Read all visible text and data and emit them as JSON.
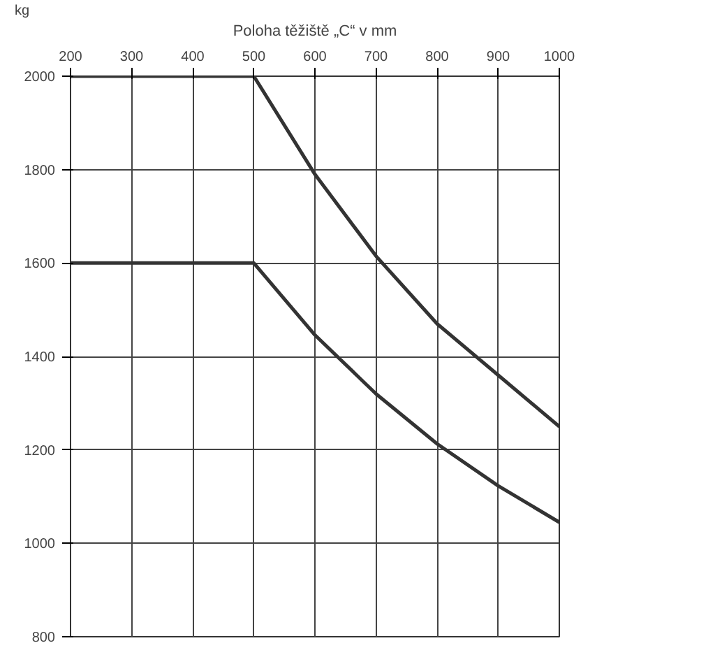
{
  "chart_data": {
    "type": "line",
    "xlabel": "Poloha těžiště „C“ v mm",
    "ylabel": "kg",
    "x": [
      200,
      300,
      400,
      500,
      600,
      700,
      800,
      900,
      1000
    ],
    "series": [
      {
        "color": "#333333",
        "values": [
          2000,
          2000,
          2000,
          2000,
          1790,
          1615,
          1470,
          1360,
          1250
        ]
      },
      {
        "color": "#333333",
        "values": [
          1600,
          1600,
          1600,
          1600,
          1446,
          1320,
          1213,
          1123,
          1045
        ]
      }
    ],
    "xlim": [
      200,
      1000
    ],
    "xticks": [
      200,
      300,
      400,
      500,
      600,
      700,
      800,
      900,
      1000
    ],
    "ylim": [
      800,
      2000
    ],
    "yticks": [
      800,
      1000,
      1200,
      1400,
      1600,
      1800,
      2000
    ],
    "grid": true,
    "marker": "none",
    "line_style": "solid"
  }
}
